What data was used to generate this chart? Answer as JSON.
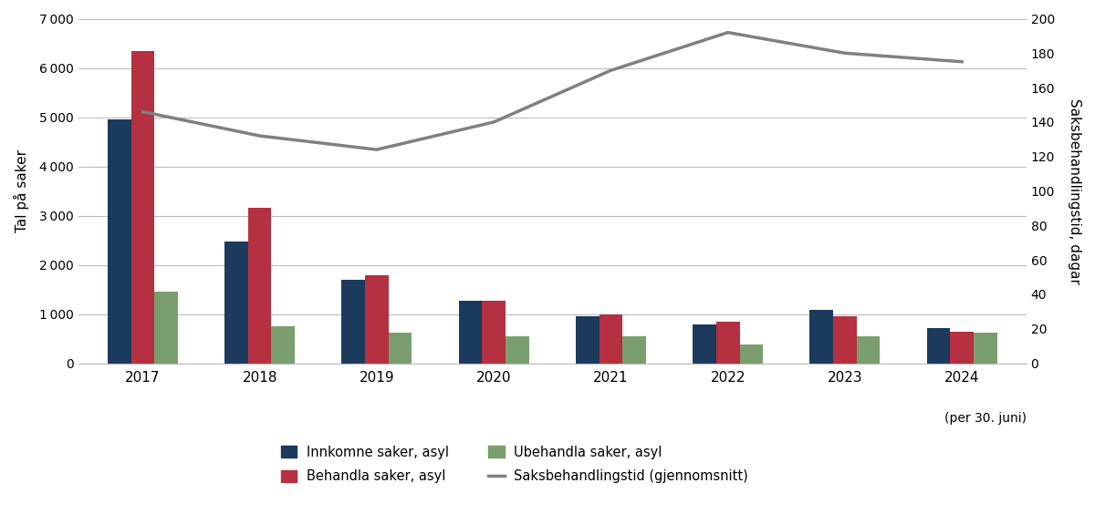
{
  "years": [
    2017,
    2018,
    2019,
    2020,
    2021,
    2022,
    2023,
    2024
  ],
  "innkomne": [
    4950,
    2480,
    1700,
    1270,
    960,
    780,
    1080,
    710
  ],
  "behandla": [
    6350,
    3160,
    1790,
    1270,
    990,
    850,
    960,
    640
  ],
  "ubehandla": [
    1450,
    760,
    630,
    540,
    540,
    390,
    540,
    620
  ],
  "saksbehandlingstid": [
    146,
    132,
    124,
    140,
    170,
    192,
    180,
    175
  ],
  "bar_width": 0.2,
  "ylim_left": [
    0,
    7000
  ],
  "ylim_right": [
    0,
    200
  ],
  "yticks_left": [
    0,
    1000,
    2000,
    3000,
    4000,
    5000,
    6000,
    7000
  ],
  "yticks_right": [
    0,
    20,
    40,
    60,
    80,
    100,
    120,
    140,
    160,
    180,
    200
  ],
  "ylabel_left": "Tal på saker",
  "ylabel_right": "Saksbehandlingstid, dagar",
  "xlabel_last": "(per 30. juni)",
  "color_innkomne": "#1b3a5c",
  "color_behandla": "#b53040",
  "color_ubehandla": "#7a9e6e",
  "color_line": "#808080",
  "legend_innkomne": "Innkomne saker, asyl",
  "legend_behandla": "Behandla saker, asyl",
  "legend_ubehandla": "Ubehandla saker, asyl",
  "legend_line": "Saksbehandlingstid (gjennomsnitt)",
  "background_color": "#ffffff",
  "grid_color": "#bbbbbb",
  "title": ""
}
